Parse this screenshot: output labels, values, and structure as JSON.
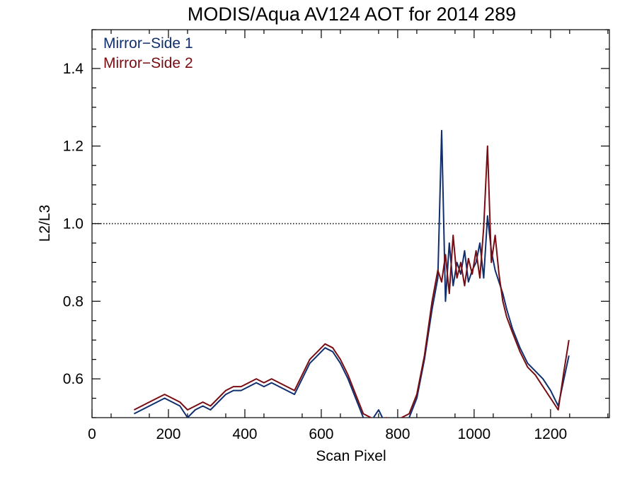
{
  "chart_data": {
    "type": "line",
    "title": "MODIS/Aqua AV124 AOT for 2014 289",
    "xlabel": "Scan Pixel",
    "ylabel": "L2/L3",
    "xlim": [
      0,
      1354
    ],
    "ylim": [
      0.5,
      1.5
    ],
    "x_ticks": [
      0,
      200,
      400,
      600,
      800,
      1000,
      1200
    ],
    "x_tick_labels": [
      "0",
      "200",
      "400",
      "600",
      "800",
      "1000",
      "1200"
    ],
    "y_ticks": [
      0.6,
      0.8,
      1.0,
      1.2,
      1.4
    ],
    "y_tick_labels": [
      "0.6",
      "0.8",
      "1.0",
      "1.2",
      "1.4"
    ],
    "reference_line": {
      "y": 1.0,
      "style": "dotted"
    },
    "legend_position": "top-left",
    "series": [
      {
        "name": "Mirror−Side 1",
        "color": "#0f2f6e",
        "x": [
          110,
          130,
          150,
          170,
          190,
          210,
          230,
          250,
          270,
          290,
          310,
          330,
          350,
          370,
          390,
          410,
          430,
          450,
          470,
          490,
          510,
          530,
          550,
          570,
          590,
          610,
          630,
          650,
          670,
          690,
          710,
          730,
          750,
          770,
          790,
          810,
          830,
          850,
          870,
          890,
          905,
          915,
          925,
          935,
          945,
          955,
          965,
          975,
          985,
          995,
          1005,
          1015,
          1025,
          1035,
          1045,
          1055,
          1065,
          1075,
          1085,
          1100,
          1120,
          1140,
          1160,
          1180,
          1200,
          1220,
          1235,
          1248
        ],
        "values": [
          0.51,
          0.52,
          0.53,
          0.54,
          0.55,
          0.54,
          0.53,
          0.5,
          0.52,
          0.53,
          0.52,
          0.54,
          0.56,
          0.57,
          0.57,
          0.58,
          0.59,
          0.58,
          0.59,
          0.58,
          0.57,
          0.56,
          0.6,
          0.64,
          0.66,
          0.68,
          0.67,
          0.64,
          0.6,
          0.55,
          0.5,
          0.49,
          0.52,
          0.48,
          0.5,
          0.47,
          0.5,
          0.55,
          0.65,
          0.78,
          0.86,
          1.24,
          0.8,
          0.95,
          0.84,
          0.9,
          0.87,
          0.93,
          0.85,
          0.88,
          0.9,
          0.95,
          0.86,
          1.02,
          0.93,
          0.88,
          0.85,
          0.82,
          0.78,
          0.73,
          0.68,
          0.64,
          0.62,
          0.6,
          0.57,
          0.53,
          0.6,
          0.66
        ]
      },
      {
        "name": "Mirror−Side 2",
        "color": "#7a0c12",
        "x": [
          110,
          130,
          150,
          170,
          190,
          210,
          230,
          250,
          270,
          290,
          310,
          330,
          350,
          370,
          390,
          410,
          430,
          450,
          470,
          490,
          510,
          530,
          550,
          570,
          590,
          610,
          630,
          650,
          670,
          690,
          710,
          730,
          750,
          770,
          790,
          810,
          830,
          850,
          870,
          890,
          905,
          915,
          925,
          935,
          945,
          955,
          965,
          975,
          985,
          995,
          1005,
          1015,
          1025,
          1035,
          1045,
          1055,
          1065,
          1075,
          1085,
          1100,
          1120,
          1140,
          1160,
          1180,
          1200,
          1220,
          1235,
          1248
        ],
        "values": [
          0.52,
          0.53,
          0.54,
          0.55,
          0.56,
          0.55,
          0.54,
          0.52,
          0.53,
          0.54,
          0.53,
          0.55,
          0.57,
          0.58,
          0.58,
          0.59,
          0.6,
          0.59,
          0.6,
          0.59,
          0.58,
          0.57,
          0.61,
          0.65,
          0.67,
          0.69,
          0.68,
          0.65,
          0.61,
          0.56,
          0.51,
          0.5,
          0.49,
          0.5,
          0.49,
          0.5,
          0.51,
          0.56,
          0.66,
          0.8,
          0.88,
          0.85,
          0.92,
          0.82,
          0.97,
          0.86,
          0.9,
          0.84,
          0.91,
          0.87,
          0.93,
          0.86,
          0.99,
          1.2,
          0.9,
          0.97,
          0.87,
          0.8,
          0.76,
          0.72,
          0.67,
          0.63,
          0.61,
          0.58,
          0.55,
          0.52,
          0.62,
          0.7
        ]
      }
    ]
  }
}
